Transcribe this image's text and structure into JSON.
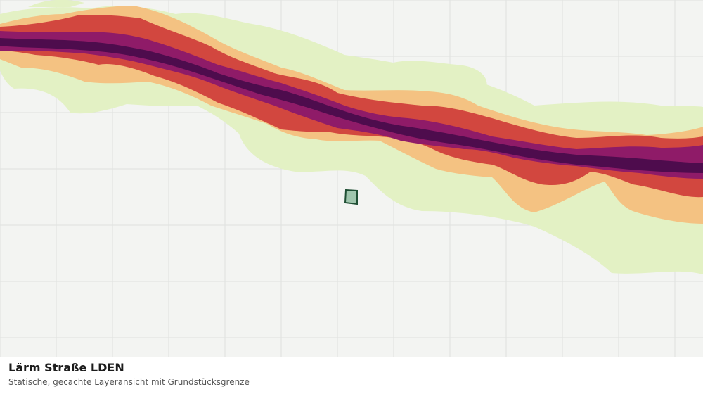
{
  "map": {
    "layer_title": "Lärm Straße LDEN",
    "layer_subtitle": "Statische, gecachte Layeransicht mit Grundstücksgrenze",
    "noise_band_colors": [
      "#e3f1c4",
      "#f4c282",
      "#d2473f",
      "#8f1b68",
      "#4e0c4d"
    ],
    "parcel_fill": "#9fc5ad",
    "parcel_stroke": "#1f4f34",
    "grid_color": "#dfe1df",
    "background": "#f3f4f2"
  }
}
